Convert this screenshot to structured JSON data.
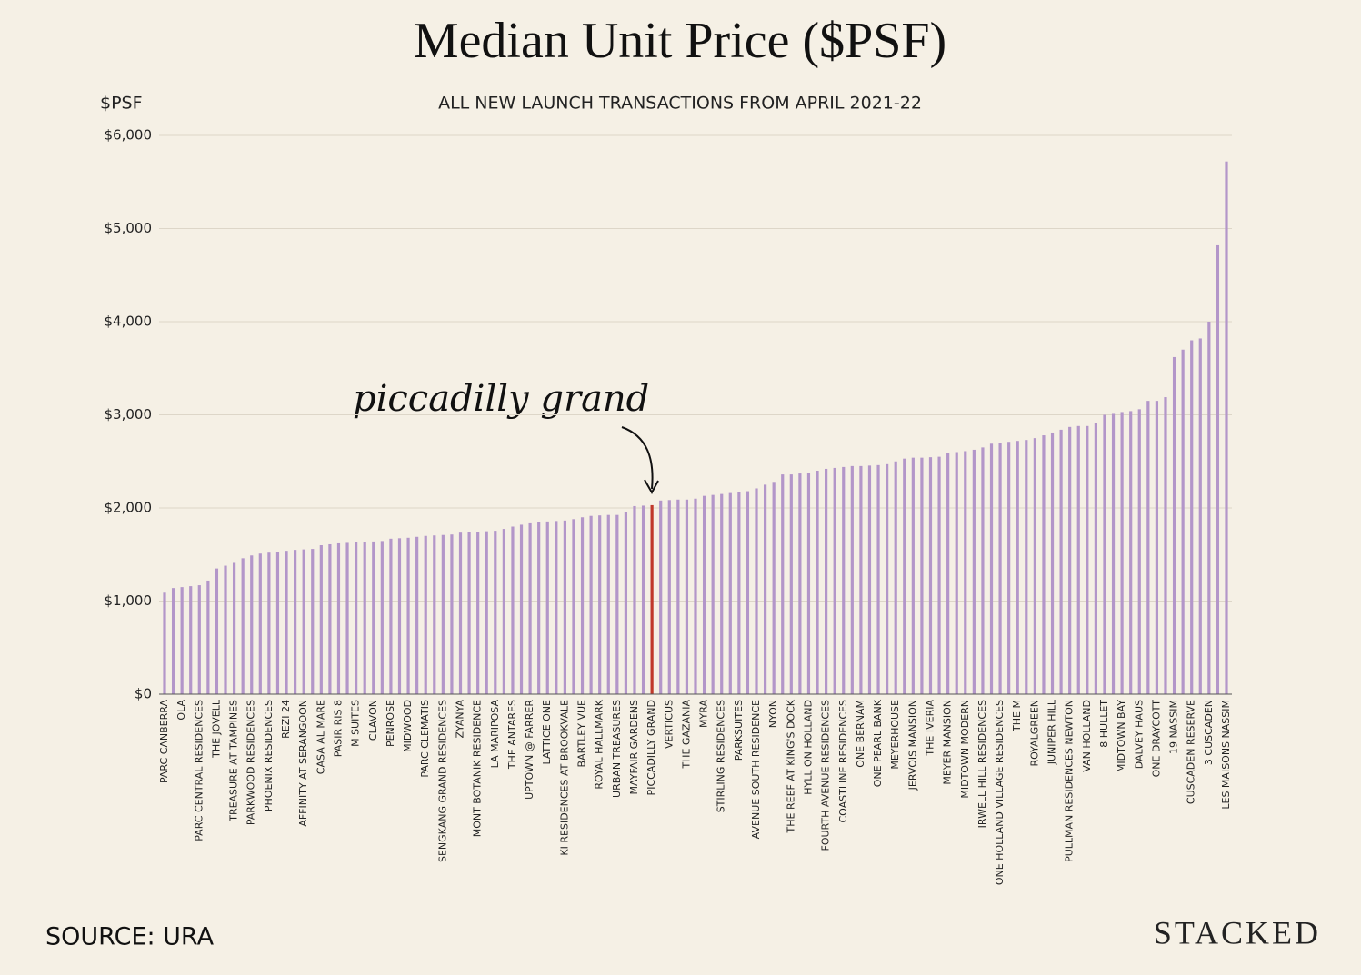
{
  "chart_data": {
    "type": "bar",
    "title": "Median Unit Price ($PSF)",
    "subtitle": "ALL NEW LAUNCH TRANSACTIONS FROM APRIL 2021-22",
    "y_label": "$PSF",
    "source": "SOURCE: URA",
    "brand": "STACKED",
    "annotation": "piccadilly grand",
    "highlight": "PICCADILLY GRAND",
    "color": "#b396c9",
    "highlight_color": "#c0392b",
    "grid": true,
    "ylim": [
      0,
      6000
    ],
    "yticks": [
      {
        "value": 0,
        "label": "$0"
      },
      {
        "value": 1000,
        "label": "$1,000"
      },
      {
        "value": 2000,
        "label": "$2,000"
      },
      {
        "value": 3000,
        "label": "$3,000"
      },
      {
        "value": 4000,
        "label": "$4,000"
      },
      {
        "value": 5000,
        "label": "$5,000"
      },
      {
        "value": 6000,
        "label": "$6,000"
      }
    ],
    "categories": [
      "PARC CANBERRA",
      null,
      "OLA",
      null,
      "PARC CENTRAL RESIDENCES",
      null,
      "THE JOVELL",
      null,
      "TREASURE AT TAMPINES",
      null,
      "PARKWOOD RESIDENCES",
      null,
      "PHOENIX RESIDENCES",
      null,
      "REZI 24",
      null,
      "AFFINITY AT SERANGOON",
      null,
      "CASA AL MARE",
      null,
      "PASIR RIS 8",
      null,
      "M SUITES",
      null,
      "CLAVON",
      null,
      "PENROSE",
      null,
      "MIDWOOD",
      null,
      "PARC CLEMATIS",
      null,
      "SENGKANG GRAND RESIDENCES",
      null,
      "ZYANYA",
      null,
      "MONT BOTANIK RESIDENCE",
      null,
      "LA MARIPOSA",
      null,
      "THE ANTARES",
      null,
      "UPTOWN @ FARRER",
      null,
      "LATTICE ONE",
      null,
      "KI RESIDENCES AT BROOKVALE",
      null,
      "BARTLEY VUE",
      null,
      "ROYAL HALLMARK",
      null,
      "URBAN TREASURES",
      null,
      "MAYFAIR GARDENS",
      null,
      "PICCADILLY GRAND",
      null,
      "VERTICUS",
      null,
      "THE GAZANIA",
      null,
      "MYRA",
      null,
      "STIRLING RESIDENCES",
      null,
      "PARKSUITES",
      null,
      "AVENUE SOUTH RESIDENCE",
      null,
      "NYON",
      null,
      "THE REEF AT KING'S DOCK",
      null,
      "HYLL ON HOLLAND",
      null,
      "FOURTH AVENUE RESIDENCES",
      null,
      "COASTLINE RESIDENCES",
      null,
      "ONE BERNAM",
      null,
      "ONE PEARL BANK",
      null,
      "MEYERHOUSE",
      null,
      "JERVOIS MANSION",
      null,
      "THE IVERIA",
      null,
      "MEYER MANSION",
      null,
      "MIDTOWN MODERN",
      null,
      "IRWELL HILL RESIDENCES",
      null,
      "ONE HOLLAND VILLAGE RESIDENCES",
      null,
      "THE M",
      null,
      "ROYALGREEN",
      null,
      "JUNIPER HILL",
      null,
      "PULLMAN RESIDENCES NEWTON",
      null,
      "VAN HOLLAND",
      null,
      "8 HULLET",
      null,
      "MIDTOWN BAY",
      null,
      "DALVEY HAUS",
      null,
      "ONE DRAYCOTT",
      null,
      "19 NASSIM",
      null,
      "CUSCADEN RESERVE",
      null,
      "3 CUSCADEN",
      null,
      "LES MAISONS NASSIM"
    ],
    "values": [
      1090,
      1140,
      1150,
      1160,
      1170,
      1220,
      1350,
      1380,
      1410,
      1460,
      1490,
      1510,
      1520,
      1530,
      1540,
      1550,
      1555,
      1560,
      1600,
      1610,
      1620,
      1625,
      1630,
      1635,
      1640,
      1645,
      1670,
      1675,
      1680,
      1690,
      1700,
      1705,
      1710,
      1715,
      1735,
      1740,
      1745,
      1750,
      1755,
      1775,
      1800,
      1820,
      1835,
      1845,
      1855,
      1860,
      1865,
      1880,
      1900,
      1915,
      1920,
      1925,
      1925,
      1960,
      2020,
      2025,
      2030,
      2080,
      2085,
      2090,
      2090,
      2100,
      2130,
      2140,
      2150,
      2160,
      2170,
      2180,
      2210,
      2250,
      2280,
      2360,
      2360,
      2370,
      2380,
      2400,
      2420,
      2430,
      2440,
      2450,
      2450,
      2455,
      2460,
      2470,
      2500,
      2530,
      2540,
      2540,
      2545,
      2550,
      2590,
      2600,
      2610,
      2625,
      2650,
      2690,
      2700,
      2710,
      2720,
      2730,
      2750,
      2780,
      2810,
      2840,
      2870,
      2880,
      2880,
      2910,
      3000,
      3010,
      3030,
      3040,
      3060,
      3150,
      3150,
      3190,
      3620,
      3700,
      3800,
      3820,
      4000,
      4820,
      5720
    ]
  }
}
